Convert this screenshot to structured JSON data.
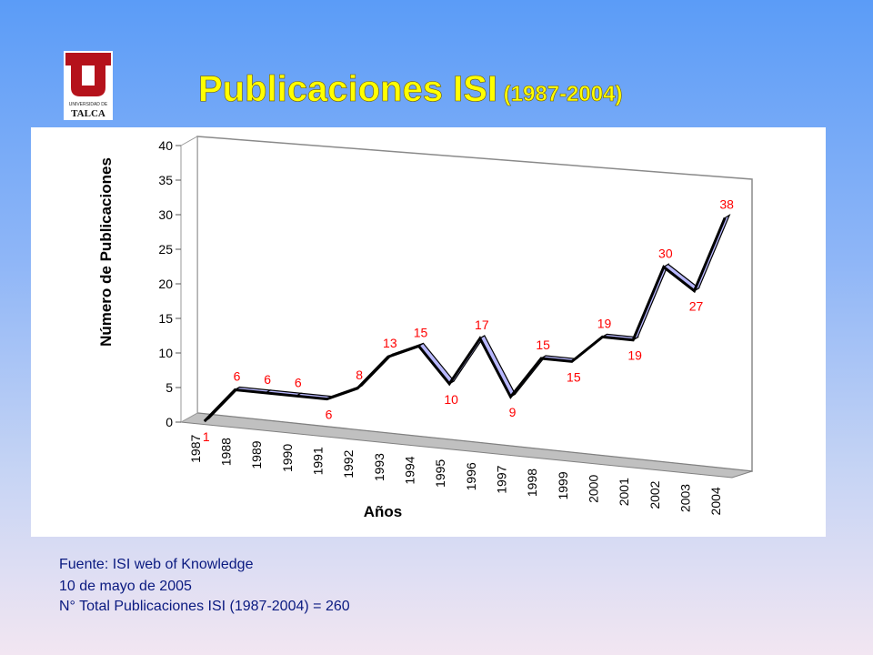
{
  "logo": {
    "text_top": "UNIVERSIDAD DE",
    "text_bottom": "TALCA"
  },
  "title": {
    "main": "Publicaciones ISI",
    "sub": " (1987-2004)"
  },
  "chart_data": {
    "type": "line",
    "style": "3d-line",
    "title": "",
    "xlabel": "Años",
    "ylabel": "Número de Publicaciones",
    "ylim": [
      0,
      40
    ],
    "yticks": [
      "0",
      "5",
      "10",
      "15",
      "20",
      "25",
      "30",
      "35",
      "40"
    ],
    "grid": false,
    "legend": "none",
    "categories": [
      "1987",
      "1988",
      "1989",
      "1990",
      "1991",
      "1992",
      "1993",
      "1994",
      "1995",
      "1996",
      "1997",
      "1998",
      "1999",
      "2000",
      "2001",
      "2002",
      "2003",
      "2004"
    ],
    "series": [
      {
        "values": [
          1,
          6,
          6,
          6,
          6,
          8,
          13,
          15,
          10,
          17,
          9,
          15,
          15,
          19,
          19,
          30,
          27,
          38
        ]
      }
    ],
    "line_color": "#b8b8ff",
    "label_color": "#ff0000"
  },
  "notes": {
    "source": "Fuente: ISI web of Knowledge",
    "date": "10 de mayo de 2005",
    "total": "N° Total Publicaciones ISI (1987-2004) = 260"
  }
}
